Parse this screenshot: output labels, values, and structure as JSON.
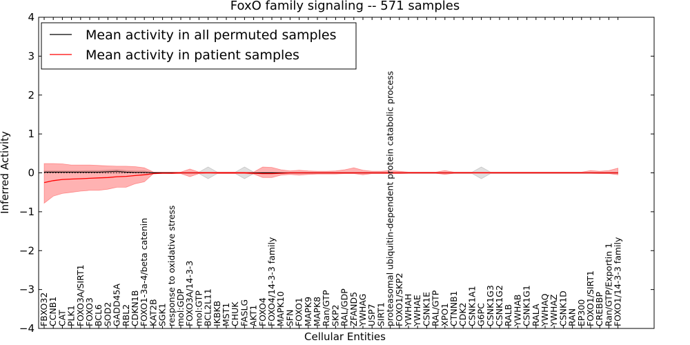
{
  "chart_data": {
    "type": "line",
    "title": "FoxO family signaling -- 571 samples",
    "xlabel": "Cellular Entities",
    "ylabel": "Inferred Activity",
    "ylim": [
      -4,
      4
    ],
    "yticks": [
      "4",
      "3",
      "2",
      "1",
      "0",
      "−1",
      "−2",
      "−3",
      "−4"
    ],
    "legend": {
      "position": "top-left",
      "entries": [
        {
          "label": "Mean activity in all permuted samples",
          "color": "#000000"
        },
        {
          "label": "Mean activity in patient samples",
          "color": "#ff0000"
        }
      ]
    },
    "categories": [
      "FBXO32",
      "CCNB1",
      "CAT",
      "PLK1",
      "FOXO3A/SIRT1",
      "FOXO3",
      "BCL6",
      "SOD2",
      "GADD45A",
      "RBL2",
      "CDKN1B",
      "FOXO1-3a-4/beta catenin",
      "KAT2B",
      "SGK1",
      "response to oxidative stress",
      "mol:GDP",
      "FOXO3A/14-3-3",
      "mol:GTP",
      "BCL2L11",
      "IKBKB",
      "MST1",
      "CHUK",
      "FASLG",
      "AKT1",
      "FOXO4",
      "FOXO4/14-3-3 family",
      "MAPK10",
      "SFN",
      "FOXO1",
      "MAPK9",
      "MAPK8",
      "Ran/GTP",
      "SKP2",
      "RAL/GDP",
      "ZFAND5",
      "YWHAG",
      "USP7",
      "SIRT1",
      "proteasomal ubiquitin-dependent protein catabolic process",
      "FOXO1/SKP2",
      "YWHAH",
      "YWHAE",
      "CSNK1E",
      "RAL/GTP",
      "XPO1",
      "CTNNB1",
      "CDK2",
      "CSNK1A1",
      "G6PC",
      "CSNK1G3",
      "CSNK1G2",
      "RALB",
      "YWHAB",
      "CSNK1G1",
      "RALA",
      "YWHAQ",
      "YWHAZ",
      "CSNK1D",
      "RAN",
      "EP300",
      "FOXO1/SIRT1",
      "CREBBP",
      "Ran/GTP/Exportin 1",
      "FOXO1/14-3-3 family"
    ],
    "series": [
      {
        "name": "Mean activity in patient samples",
        "color": "#ff0000",
        "values": [
          -0.25,
          -0.2,
          -0.17,
          -0.16,
          -0.15,
          -0.14,
          -0.13,
          -0.12,
          -0.1,
          -0.09,
          -0.07,
          -0.05,
          -0.02,
          -0.01,
          -0.01,
          0,
          0,
          0,
          0,
          0,
          0,
          0,
          0,
          -0.01,
          -0.02,
          -0.02,
          -0.01,
          0,
          0,
          0,
          0,
          0,
          0,
          0,
          0,
          0,
          0,
          0,
          0,
          0,
          0,
          0,
          0,
          0,
          0,
          0,
          0,
          0,
          0,
          0,
          0,
          0,
          0,
          0,
          0,
          0,
          0,
          0,
          0,
          0,
          0,
          0,
          0,
          0
        ],
        "band_low": [
          -0.78,
          -0.6,
          -0.53,
          -0.5,
          -0.47,
          -0.45,
          -0.45,
          -0.42,
          -0.37,
          -0.37,
          -0.28,
          -0.23,
          -0.02,
          -0.01,
          -0.02,
          -0.02,
          -0.1,
          -0.02,
          -0.01,
          -0.02,
          -0.02,
          -0.02,
          -0.02,
          -0.03,
          -0.12,
          -0.12,
          -0.06,
          -0.04,
          -0.06,
          -0.04,
          -0.03,
          -0.03,
          -0.03,
          -0.02,
          -0.02,
          -0.05,
          -0.02,
          -0.02,
          -0.02,
          -0.02,
          -0.01,
          -0.01,
          -0.01,
          -0.01,
          -0.04,
          -0.01,
          -0.01,
          -0.01,
          -0.01,
          -0.01,
          -0.01,
          -0.01,
          -0.01,
          -0.01,
          -0.01,
          -0.01,
          -0.01,
          -0.01,
          -0.01,
          -0.01,
          -0.01,
          -0.02,
          -0.02,
          -0.05
        ],
        "band_high": [
          0.24,
          0.24,
          0.23,
          0.2,
          0.2,
          0.2,
          0.19,
          0.18,
          0.17,
          0.17,
          0.16,
          0.13,
          0.02,
          0.02,
          0.02,
          0.02,
          0.1,
          0.02,
          0.02,
          0.02,
          0.02,
          0.02,
          0.02,
          0.02,
          0.15,
          0.14,
          0.08,
          0.05,
          0.07,
          0.05,
          0.04,
          0.04,
          0.05,
          0.08,
          0.13,
          0.07,
          0.04,
          0.04,
          0.06,
          0.04,
          0.02,
          0.02,
          0.02,
          0.02,
          0.06,
          0.02,
          0.02,
          0.02,
          0.02,
          0.02,
          0.02,
          0.02,
          0.02,
          0.02,
          0.02,
          0.02,
          0.02,
          0.02,
          0.02,
          0.02,
          0.06,
          0.04,
          0.06,
          0.12
        ]
      },
      {
        "name": "Mean activity in all permuted samples",
        "color": "#000000",
        "values": [
          0.02,
          0.02,
          0.02,
          0.02,
          0.02,
          0.02,
          0.02,
          0.03,
          0.04,
          0.02,
          0.01,
          0.01,
          0,
          0,
          0,
          0,
          0,
          0,
          0,
          0,
          0,
          0,
          0,
          0,
          0,
          0,
          0,
          0,
          0,
          0,
          0,
          0,
          0,
          0,
          0,
          0,
          0,
          0,
          0,
          0,
          0,
          0,
          0,
          0,
          0,
          0,
          0,
          0,
          0,
          0,
          0,
          0,
          0,
          0,
          0,
          0,
          0,
          0,
          0,
          0,
          0,
          0,
          0,
          0
        ],
        "band_low": [
          0,
          0,
          0,
          0,
          0,
          0,
          0,
          0,
          0,
          0,
          0,
          0,
          0,
          0,
          0,
          -0.02,
          -0.02,
          -0.02,
          -0.15,
          -0.02,
          -0.02,
          -0.02,
          -0.15,
          -0.02,
          -0.02,
          -0.02,
          -0.02,
          -0.02,
          -0.02,
          -0.02,
          -0.02,
          -0.02,
          -0.02,
          -0.02,
          -0.02,
          -0.02,
          -0.02,
          -0.02,
          -0.02,
          -0.02,
          -0.02,
          -0.02,
          -0.02,
          -0.02,
          -0.02,
          -0.02,
          -0.02,
          -0.02,
          -0.15,
          -0.02,
          -0.02,
          -0.02,
          -0.02,
          -0.02,
          -0.02,
          -0.02,
          -0.02,
          -0.02,
          -0.02,
          -0.02,
          -0.02,
          -0.02,
          -0.02,
          -0.02
        ],
        "band_high": [
          0.05,
          0.05,
          0.05,
          0.05,
          0.05,
          0.06,
          0.06,
          0.07,
          0.08,
          0.06,
          0.05,
          0.05,
          0.02,
          0.02,
          0.02,
          0.02,
          0.02,
          0.02,
          0.15,
          0.02,
          0.02,
          0.02,
          0.15,
          0.02,
          0.02,
          0.02,
          0.02,
          0.02,
          0.02,
          0.02,
          0.02,
          0.02,
          0.02,
          0.02,
          0.02,
          0.02,
          0.02,
          0.02,
          0.02,
          0.02,
          0.02,
          0.02,
          0.02,
          0.02,
          0.02,
          0.02,
          0.02,
          0.02,
          0.15,
          0.02,
          0.02,
          0.02,
          0.02,
          0.02,
          0.02,
          0.02,
          0.02,
          0.02,
          0.02,
          0.02,
          0.02,
          0.02,
          0.02,
          0.02
        ]
      }
    ],
    "reference_line": {
      "y": 0,
      "style": "dotted",
      "color": "#000000"
    }
  }
}
